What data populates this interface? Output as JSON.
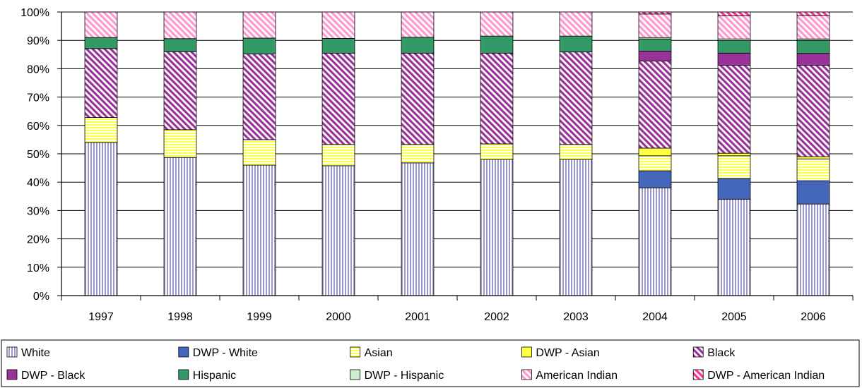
{
  "chart_data": {
    "type": "bar",
    "stacked": true,
    "normalized_percent": true,
    "categories": [
      "1997",
      "1998",
      "1999",
      "2000",
      "2001",
      "2002",
      "2003",
      "2004",
      "2005",
      "2006"
    ],
    "ylim": [
      0,
      100
    ],
    "yticks": [
      "0%",
      "10%",
      "20%",
      "30%",
      "40%",
      "50%",
      "60%",
      "70%",
      "80%",
      "90%",
      "100%"
    ],
    "grid": true,
    "legend_position": "bottom",
    "series": [
      {
        "name": "White",
        "color": "#9999cc",
        "pattern": "vertical-stripes",
        "values": [
          54,
          48.7,
          46,
          45.8,
          46.8,
          48,
          48,
          38,
          34,
          32.3
        ]
      },
      {
        "name": "DWP - White",
        "color": "#4466bb",
        "pattern": "solid",
        "values": [
          0,
          0,
          0,
          0,
          0,
          0,
          0,
          6,
          7.3,
          8.2
        ]
      },
      {
        "name": "Asian",
        "color": "#ffff44",
        "pattern": "horizontal-stripes",
        "values": [
          8.8,
          9.8,
          9,
          7.5,
          6.5,
          5.5,
          5.3,
          5.3,
          8,
          7.7
        ]
      },
      {
        "name": "DWP - Asian",
        "color": "#ffff44",
        "pattern": "solid",
        "values": [
          0,
          0,
          0,
          0,
          0,
          0,
          0,
          2.7,
          0.9,
          0.8
        ]
      },
      {
        "name": "Black",
        "color": "#993399",
        "pattern": "diagonal-stripes",
        "values": [
          24.3,
          27.5,
          30.2,
          32.2,
          32.2,
          32,
          32.6,
          30.7,
          31,
          32.2
        ]
      },
      {
        "name": "DWP - Black",
        "color": "#993399",
        "pattern": "solid",
        "values": [
          0,
          0,
          0,
          0,
          0,
          0,
          0,
          3.5,
          4.3,
          4.2
        ]
      },
      {
        "name": "Hispanic",
        "color": "#339966",
        "pattern": "solid",
        "values": [
          3.9,
          4.6,
          5.6,
          5.2,
          5.6,
          6,
          5.6,
          4.3,
          4.4,
          4.6
        ]
      },
      {
        "name": "DWP - Hispanic",
        "color": "#cceecc",
        "pattern": "solid",
        "values": [
          0,
          0,
          0,
          0,
          0,
          0,
          0,
          0.5,
          0.6,
          0.5
        ]
      },
      {
        "name": "American Indian",
        "color": "#ff99cc",
        "pattern": "diagonal-stripes",
        "values": [
          9,
          9.4,
          9.2,
          9.3,
          8.9,
          8.5,
          8.5,
          8.3,
          8.2,
          8.3
        ]
      },
      {
        "name": "DWP - American Indian",
        "color": "#ff3399",
        "pattern": "solid",
        "values": [
          0,
          0,
          0,
          0,
          0,
          0,
          0,
          0.7,
          1.3,
          1.2
        ]
      }
    ]
  }
}
